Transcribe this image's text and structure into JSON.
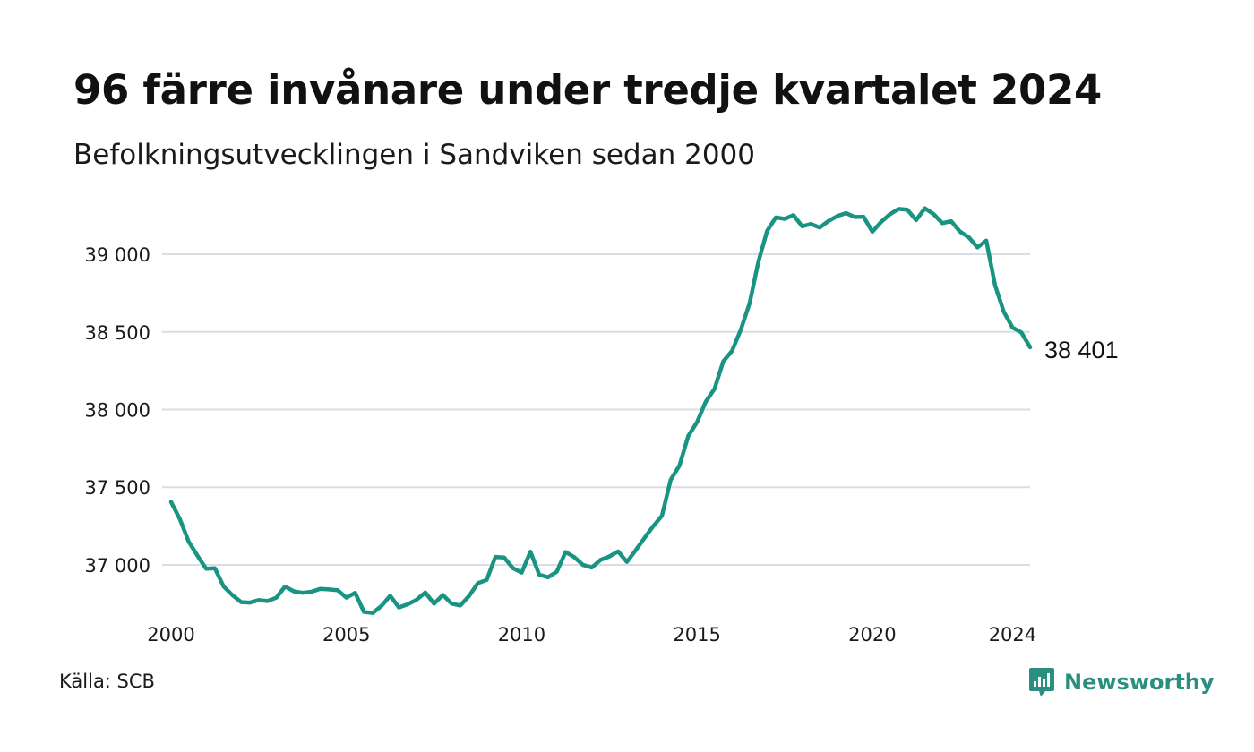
{
  "title": "96 färre invånare under tredje kvartalet 2024",
  "subtitle": "Befolkningsutvecklingen i Sandviken sedan 2000",
  "source": "Källa: SCB",
  "brand": {
    "name": "Newsworthy",
    "icon": "newsworthy-logo-icon",
    "color": "#2b8f80"
  },
  "colors": {
    "line": "#1a9482",
    "grid": "#dcdce6"
  },
  "chart_data": {
    "type": "line",
    "title": "96 färre invånare under tredje kvartalet 2024",
    "subtitle": "Befolkningsutvecklingen i Sandviken sedan 2000",
    "xlabel": "",
    "ylabel": "",
    "xlim": [
      2000.0,
      2024.5
    ],
    "ylim": [
      36700,
      39300
    ],
    "grid": true,
    "x_ticks": [
      2000,
      2005,
      2010,
      2015,
      2020,
      2024
    ],
    "x_tick_labels": [
      "2000",
      "2005",
      "2010",
      "2015",
      "2020",
      "2024"
    ],
    "y_ticks": [
      37000,
      37500,
      38000,
      38500,
      39000
    ],
    "y_tick_labels": [
      "37 000",
      "37 500",
      "38 000",
      "38 500",
      "39 000"
    ],
    "end_label": "38 401",
    "series": [
      {
        "name": "",
        "x": [
          2000.0,
          2000.25,
          2000.5,
          2000.75,
          2001.0,
          2001.25,
          2001.5,
          2001.75,
          2002.0,
          2002.25,
          2002.5,
          2002.75,
          2003.0,
          2003.25,
          2003.5,
          2003.75,
          2004.0,
          2004.25,
          2004.5,
          2004.75,
          2005.0,
          2005.25,
          2005.5,
          2005.75,
          2006.0,
          2006.25,
          2006.5,
          2006.75,
          2007.0,
          2007.25,
          2007.5,
          2007.75,
          2008.0,
          2008.25,
          2008.5,
          2008.75,
          2009.0,
          2009.25,
          2009.5,
          2009.75,
          2010.0,
          2010.25,
          2010.5,
          2010.75,
          2011.0,
          2011.25,
          2011.5,
          2011.75,
          2012.0,
          2012.25,
          2012.5,
          2012.75,
          2013.0,
          2013.25,
          2013.5,
          2013.75,
          2014.0,
          2014.25,
          2014.5,
          2014.75,
          2015.0,
          2015.25,
          2015.5,
          2015.75,
          2016.0,
          2016.25,
          2016.5,
          2016.75,
          2017.0,
          2017.25,
          2017.5,
          2017.75,
          2018.0,
          2018.25,
          2018.5,
          2018.75,
          2019.0,
          2019.25,
          2019.5,
          2019.75,
          2020.0,
          2020.25,
          2020.5,
          2020.75,
          2021.0,
          2021.25,
          2021.5,
          2021.75,
          2022.0,
          2022.25,
          2022.5,
          2022.75,
          2023.0,
          2023.25,
          2023.5,
          2023.75,
          2024.0,
          2024.25,
          2024.5
        ],
        "y": [
          37405,
          37295,
          37150,
          37060,
          36975,
          36978,
          36860,
          36805,
          36760,
          36757,
          36773,
          36767,
          36788,
          36860,
          36830,
          36820,
          36827,
          36845,
          36842,
          36837,
          36789,
          36820,
          36697,
          36690,
          36736,
          36801,
          36726,
          36746,
          36775,
          36822,
          36750,
          36806,
          36751,
          36738,
          36800,
          36882,
          36903,
          37051,
          37047,
          36979,
          36950,
          37085,
          36937,
          36920,
          36956,
          37083,
          37050,
          36999,
          36983,
          37032,
          37054,
          37087,
          37019,
          37093,
          37172,
          37248,
          37316,
          37548,
          37640,
          37830,
          37918,
          38050,
          38133,
          38310,
          38378,
          38515,
          38685,
          38950,
          39150,
          39237,
          39228,
          39252,
          39180,
          39195,
          39172,
          39214,
          39246,
          39265,
          39240,
          39242,
          39145,
          39208,
          39257,
          39292,
          39287,
          39220,
          39296,
          39258,
          39200,
          39213,
          39146,
          39110,
          39044,
          39088,
          38800,
          38630,
          38528,
          38497,
          38401
        ]
      }
    ]
  }
}
